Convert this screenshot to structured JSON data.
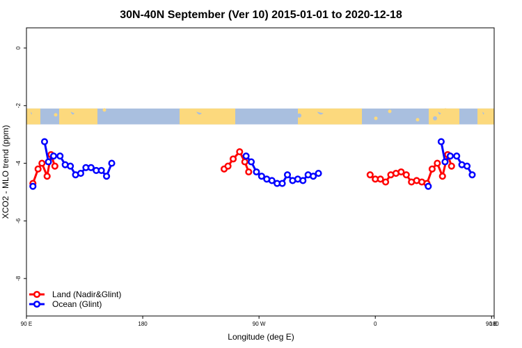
{
  "chart_data": {
    "type": "line",
    "title": "30N-40N September (Ver 10)   2015-01-01 to 2020-12-18",
    "xlabel": "Longitude (deg E)",
    "ylabel": "XCO2 - MLO trend (ppm)",
    "xlim": [
      90,
      450
    ],
    "ylim": [
      -9.3,
      0.7
    ],
    "x_ticks": [
      {
        "value": 90,
        "label": "90 E"
      },
      {
        "value": 180,
        "label": "180"
      },
      {
        "value": 270,
        "label": "90 W"
      },
      {
        "value": 360,
        "label": "0"
      },
      {
        "value": 450,
        "label": "90 E"
      },
      {
        "value": 540,
        "label": "180"
      }
    ],
    "y_ticks": [
      0,
      -2,
      -4,
      -6,
      -8
    ],
    "legend_position": "bottom-left",
    "map_band": {
      "y_top": -2.1,
      "y_bottom": -2.65,
      "ocean_color": "#a9bfdf",
      "land_color": "#fcd97d"
    },
    "series": [
      {
        "name": "Land (Nadir&Glint)",
        "color": "#ff0000",
        "segments": [
          [
            [
              95,
              -4.7
            ],
            [
              99,
              -4.2
            ],
            [
              102,
              -4.0
            ],
            [
              106,
              -4.45
            ],
            [
              109,
              -3.7
            ],
            [
              112,
              -4.1
            ]
          ],
          [
            [
              243,
              -4.2
            ],
            [
              246,
              -4.1
            ],
            [
              250,
              -3.85
            ],
            [
              255,
              -3.6
            ],
            [
              259,
              -3.95
            ],
            [
              262,
              -4.3
            ]
          ],
          [
            [
              356,
              -4.4
            ],
            [
              360,
              -4.55
            ],
            [
              364,
              -4.55
            ],
            [
              368,
              -4.65
            ],
            [
              372,
              -4.4
            ],
            [
              376,
              -4.35
            ],
            [
              380,
              -4.3
            ],
            [
              384,
              -4.4
            ],
            [
              388,
              -4.65
            ],
            [
              392,
              -4.6
            ],
            [
              396,
              -4.65
            ],
            [
              400,
              -4.7
            ],
            [
              404,
              -4.2
            ],
            [
              408,
              -4.0
            ],
            [
              412,
              -4.45
            ],
            [
              416,
              -3.7
            ],
            [
              419,
              -4.1
            ]
          ]
        ]
      },
      {
        "name": "Ocean (Glint)",
        "color": "#0000ff",
        "segments": [
          [
            [
              95,
              -4.8
            ]
          ],
          [
            [
              104,
              -3.25
            ],
            [
              107,
              -3.95
            ],
            [
              111,
              -3.75
            ],
            [
              116,
              -3.75
            ],
            [
              120,
              -4.05
            ],
            [
              124,
              -4.1
            ],
            [
              128,
              -4.4
            ],
            [
              132,
              -4.35
            ],
            [
              136,
              -4.15
            ],
            [
              140,
              -4.15
            ],
            [
              144,
              -4.25
            ],
            [
              148,
              -4.25
            ],
            [
              152,
              -4.45
            ],
            [
              156,
              -4.0
            ]
          ],
          [
            [
              260,
              -3.75
            ],
            [
              264,
              -3.95
            ],
            [
              268,
              -4.3
            ],
            [
              272,
              -4.45
            ],
            [
              276,
              -4.55
            ],
            [
              280,
              -4.6
            ],
            [
              284,
              -4.7
            ],
            [
              288,
              -4.7
            ],
            [
              292,
              -4.4
            ],
            [
              296,
              -4.6
            ],
            [
              300,
              -4.55
            ],
            [
              304,
              -4.6
            ],
            [
              308,
              -4.4
            ],
            [
              312,
              -4.45
            ],
            [
              316,
              -4.35
            ]
          ],
          [
            [
              401,
              -4.8
            ]
          ],
          [
            [
              411,
              -3.25
            ],
            [
              414,
              -3.95
            ],
            [
              418,
              -3.75
            ],
            [
              423,
              -3.75
            ],
            [
              427,
              -4.05
            ],
            [
              431,
              -4.1
            ],
            [
              435,
              -4.4
            ]
          ]
        ]
      }
    ]
  }
}
